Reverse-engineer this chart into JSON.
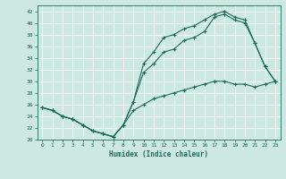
{
  "title": "",
  "xlabel": "Humidex (Indice chaleur)",
  "xlim": [
    -0.5,
    23.5
  ],
  "ylim": [
    20,
    43
  ],
  "yticks": [
    20,
    22,
    24,
    26,
    28,
    30,
    32,
    34,
    36,
    38,
    40,
    42
  ],
  "xticks": [
    0,
    1,
    2,
    3,
    4,
    5,
    6,
    7,
    8,
    9,
    10,
    11,
    12,
    13,
    14,
    15,
    16,
    17,
    18,
    19,
    20,
    21,
    22,
    23
  ],
  "bg_color": "#cce8e0",
  "line_color": "#1a6b5a",
  "line1_x": [
    0,
    1,
    2,
    3,
    4,
    5,
    6,
    7,
    8,
    9,
    10,
    11,
    12,
    13,
    14,
    15,
    16,
    17,
    18,
    19,
    20,
    21,
    22,
    23
  ],
  "line1_y": [
    25.5,
    25,
    24,
    23.5,
    22.5,
    21.5,
    21,
    20.5,
    22.5,
    26.5,
    33,
    35,
    37.5,
    38,
    39,
    39.5,
    40.5,
    41.5,
    42,
    41,
    40.5,
    36.5,
    32.5,
    30
  ],
  "line2_x": [
    0,
    1,
    2,
    3,
    4,
    5,
    6,
    7,
    8,
    9,
    10,
    11,
    12,
    13,
    14,
    15,
    16,
    17,
    18,
    19,
    20,
    21,
    22,
    23
  ],
  "line2_y": [
    25.5,
    25,
    24,
    23.5,
    22.5,
    21.5,
    21,
    20.5,
    22.5,
    26.5,
    31.5,
    33,
    35,
    35.5,
    37,
    37.5,
    38.5,
    41,
    41.5,
    40.5,
    40,
    36.5,
    32.5,
    30
  ],
  "line3_x": [
    0,
    1,
    2,
    3,
    4,
    5,
    6,
    7,
    8,
    9,
    10,
    11,
    12,
    13,
    14,
    15,
    16,
    17,
    18,
    19,
    20,
    21,
    22,
    23
  ],
  "line3_y": [
    25.5,
    25,
    24,
    23.5,
    22.5,
    21.5,
    21,
    20.5,
    22.5,
    25,
    26,
    27,
    27.5,
    28,
    28.5,
    29,
    29.5,
    30,
    30,
    29.5,
    29.5,
    29,
    29.5,
    30
  ],
  "tick_fontsize": 4.5,
  "xlabel_fontsize": 5.5,
  "linewidth": 0.8,
  "markersize": 3.5
}
